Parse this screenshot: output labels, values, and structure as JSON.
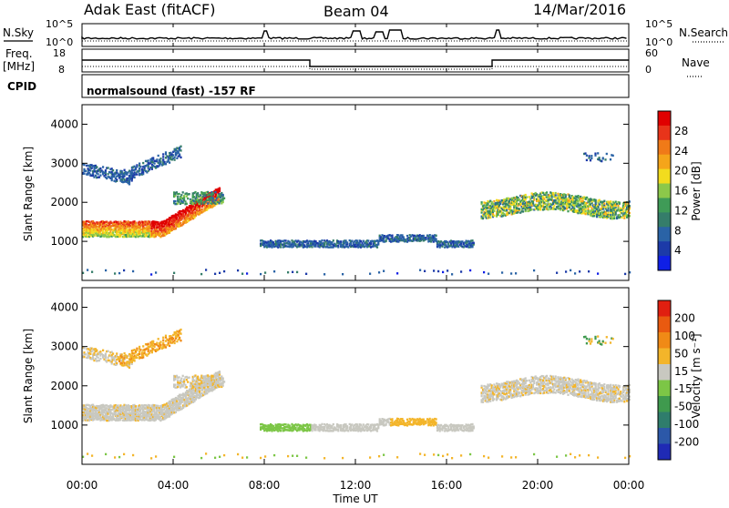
{
  "header": {
    "station": "Adak East (fitACF)",
    "beam": "Beam 04",
    "date": "14/Mar/2016"
  },
  "top_panels": {
    "nsky_label": "N.Sky",
    "nsky_ticks": [
      "10^5",
      "10^0"
    ],
    "nsearch_label": "N.Search",
    "nsearch_ticks": [
      "10^5",
      "10^0"
    ],
    "freq_label": "Freq.",
    "freq_unit": "[MHz]",
    "freq_ticks": [
      "18",
      "8"
    ],
    "nave_label": "Nave",
    "nave_ticks": [
      "60",
      "0"
    ],
    "cpid_label": "CPID",
    "cpid_text": "normalsound (fast) -157 RF"
  },
  "colors": {
    "power": [
      "#0f1fe6",
      "#1c3aa8",
      "#2a63a6",
      "#357d6a",
      "#3f9b57",
      "#8cc84a",
      "#f2dc1e",
      "#f5a51a",
      "#f07a18",
      "#e8341a",
      "#e00000"
    ],
    "velocity": [
      "#1f2ab5",
      "#2c58a8",
      "#2f7d6c",
      "#3f9a4e",
      "#7cc646",
      "#c8c8c0",
      "#f3b52a",
      "#f08a16",
      "#e95a10",
      "#e01f10"
    ]
  },
  "chart_data": [
    {
      "type": "heatmap",
      "name": "power",
      "ylabel": "Slant Range [km]",
      "yticks": [
        1000,
        2000,
        3000,
        4000
      ],
      "ylim": [
        0,
        4500
      ],
      "xlim": [
        0,
        24
      ],
      "colorbar_label": "Power [dB]",
      "colorbar_ticks": [
        "28",
        "24",
        "20",
        "16",
        "12",
        "8",
        "4"
      ],
      "clim": [
        0,
        30
      ]
    },
    {
      "type": "heatmap",
      "name": "velocity",
      "ylabel": "Slant Range [km]",
      "yticks": [
        1000,
        2000,
        3000,
        4000
      ],
      "ylim": [
        0,
        4500
      ],
      "xlim": [
        0,
        24
      ],
      "colorbar_label": "Velocity [m s⁻¹]",
      "colorbar_ticks": [
        "200",
        "100",
        "50",
        "15",
        "-15",
        "-50",
        "-100",
        "-200"
      ]
    }
  ],
  "xaxis": {
    "ticks": [
      "00:00",
      "04:00",
      "08:00",
      "12:00",
      "16:00",
      "20:00",
      "00:00"
    ],
    "tick_hours": [
      0,
      4,
      8,
      12,
      16,
      20,
      24
    ],
    "label": "Time UT"
  }
}
